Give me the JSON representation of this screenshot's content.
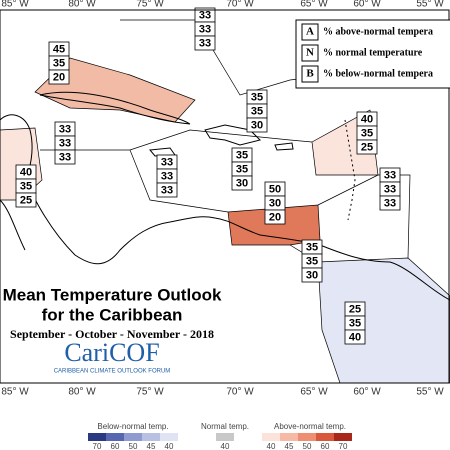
{
  "longitude_labels": [
    "85° W",
    "80° W",
    "75° W",
    "70° W",
    "65° W",
    "60° W",
    "55° W"
  ],
  "legend": {
    "rows": [
      {
        "key": "A",
        "text": "% above-normal tempera"
      },
      {
        "key": "N",
        "text": "% normal temperature"
      },
      {
        "key": "B",
        "text": "% below-normal tempera"
      }
    ]
  },
  "title": {
    "line1": "Mean Temperature Outlook",
    "line2": "for the Caribbean",
    "season": "September - October - November - 2018"
  },
  "logo": {
    "name": "CariCOF",
    "subtitle": "CARIBBEAN CLIMATE OUTLOOK FORUM"
  },
  "zones": [
    {
      "values": [
        45,
        35,
        20
      ]
    },
    {
      "values": [
        33,
        33,
        33
      ]
    },
    {
      "values": [
        33,
        33,
        33
      ]
    },
    {
      "values": [
        40,
        35,
        25
      ]
    },
    {
      "values": [
        35,
        35,
        30
      ]
    },
    {
      "values": [
        33,
        33,
        33
      ]
    },
    {
      "values": [
        35,
        35,
        30
      ]
    },
    {
      "values": [
        40,
        35,
        25
      ]
    },
    {
      "values": [
        33,
        33,
        33
      ]
    },
    {
      "values": [
        50,
        30,
        20
      ]
    },
    {
      "values": [
        35,
        35,
        30
      ]
    },
    {
      "values": [
        25,
        35,
        40
      ]
    }
  ],
  "color_scale": {
    "below_label": "Below-normal temp.",
    "below_ticks": [
      70,
      60,
      50,
      45,
      40
    ],
    "normal_label": "Normal temp.",
    "normal_ticks": [
      40
    ],
    "above_label": "Above-normal temp.",
    "above_ticks": [
      40,
      45,
      50,
      60,
      70
    ]
  }
}
